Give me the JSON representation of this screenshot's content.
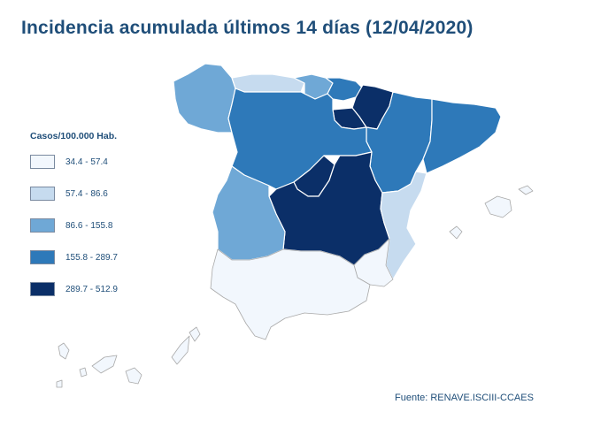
{
  "title": "Incidencia acumulada últimos 14 días (12/04/2020)",
  "legend": {
    "title": "Casos/100.000 Hab.",
    "bins": [
      {
        "label": "34.4 - 57.4",
        "color": "#f2f7fd"
      },
      {
        "label": "57.4 - 86.6",
        "color": "#c6dbef"
      },
      {
        "label": "86.6 - 155.8",
        "color": "#6fa8d6"
      },
      {
        "label": "155.8 - 289.7",
        "color": "#2e79b9"
      },
      {
        "label": "289.7 - 512.9",
        "color": "#0b2f68"
      }
    ]
  },
  "regions": [
    {
      "name": "Galicia",
      "bin": 2
    },
    {
      "name": "Asturias",
      "bin": 1
    },
    {
      "name": "Cantabria",
      "bin": 2
    },
    {
      "name": "País Vasco",
      "bin": 3
    },
    {
      "name": "Navarra",
      "bin": 4
    },
    {
      "name": "La Rioja",
      "bin": 4
    },
    {
      "name": "Aragón",
      "bin": 3
    },
    {
      "name": "Cataluña",
      "bin": 3
    },
    {
      "name": "Castilla y León",
      "bin": 3
    },
    {
      "name": "Madrid",
      "bin": 4
    },
    {
      "name": "Castilla-La Mancha",
      "bin": 4
    },
    {
      "name": "Extremadura",
      "bin": 2
    },
    {
      "name": "Comunitat Valenciana",
      "bin": 1
    },
    {
      "name": "Región de Murcia",
      "bin": 0
    },
    {
      "name": "Andalucía",
      "bin": 0
    },
    {
      "name": "Illes Balears",
      "bin": 0
    },
    {
      "name": "Canarias",
      "bin": 0
    }
  ],
  "source": "Fuente: RENAVE.ISCIII-CCAES"
}
